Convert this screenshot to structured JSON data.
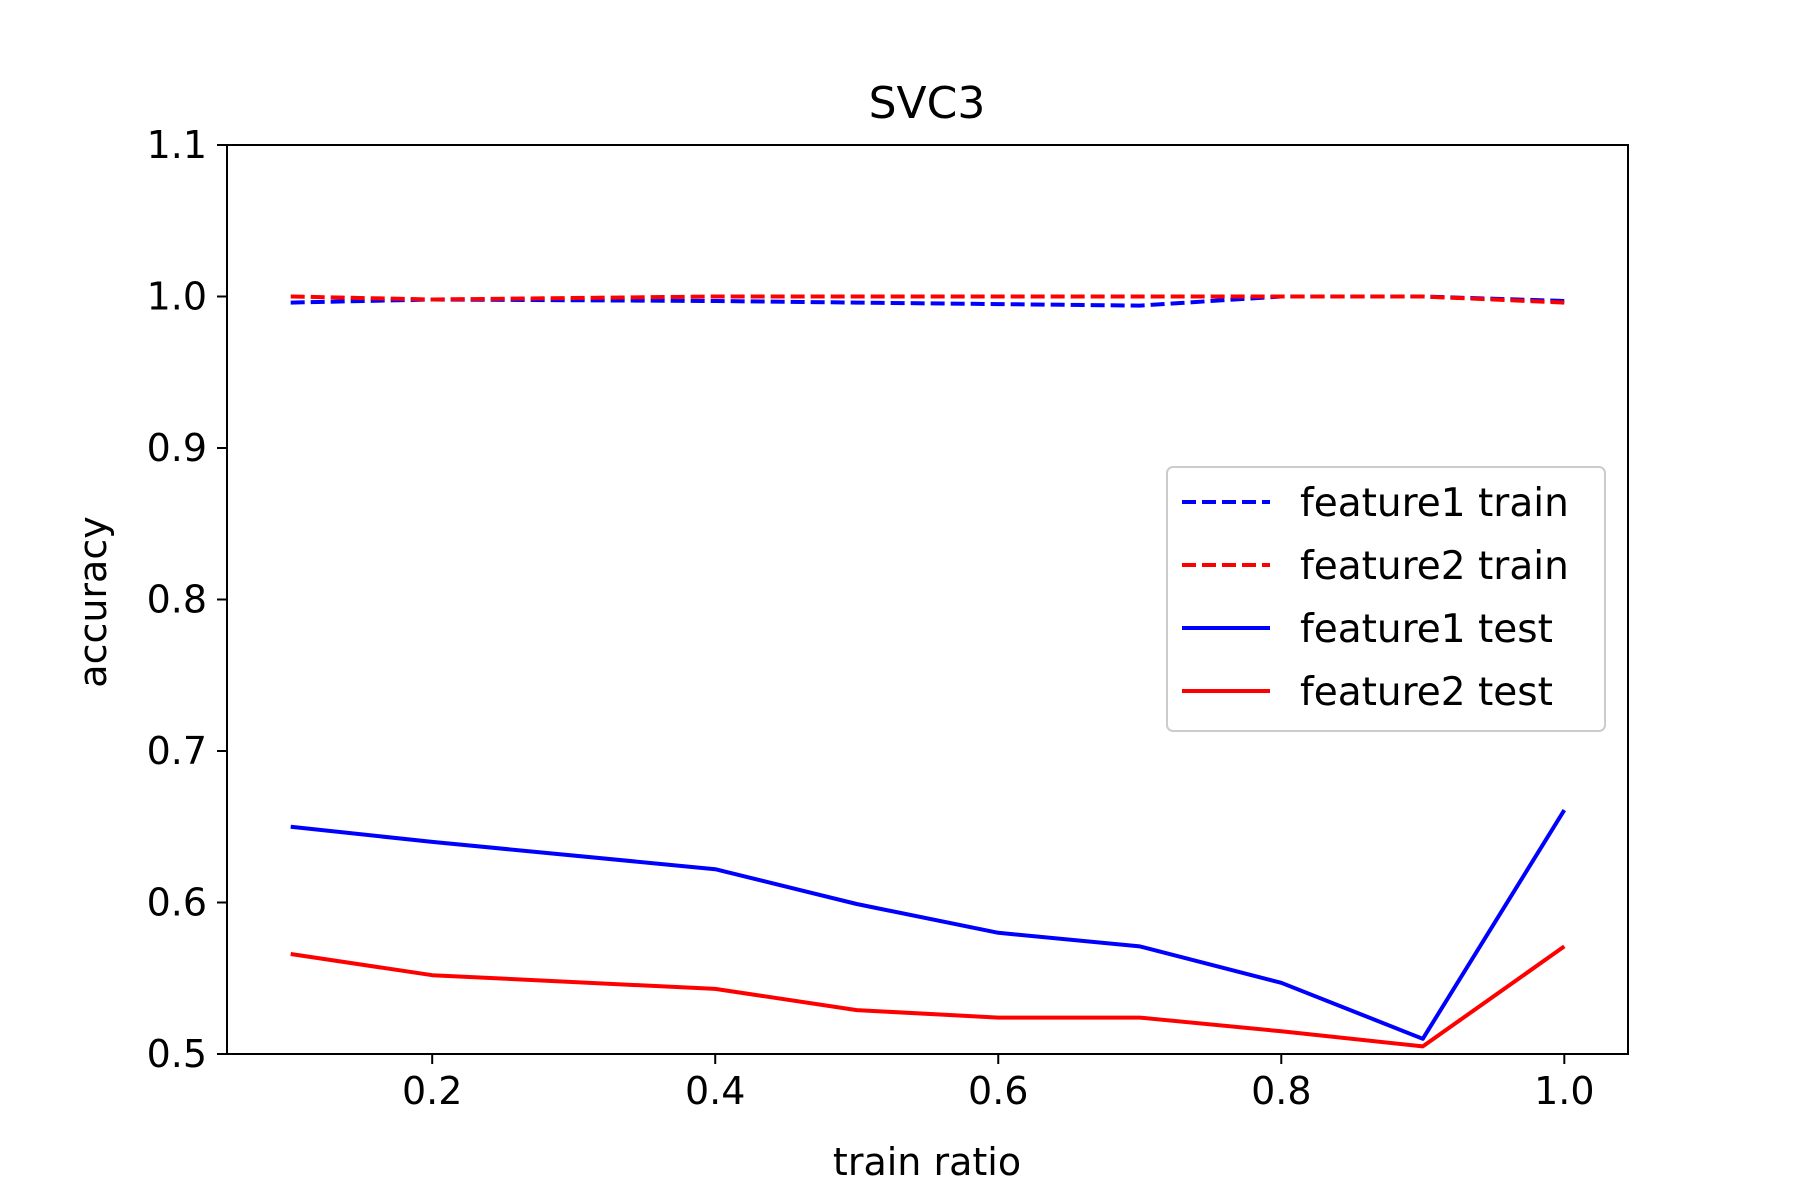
{
  "chart_data": {
    "type": "line",
    "title": "SVC3",
    "xlabel": "train ratio",
    "ylabel": "accuracy",
    "xlim": [
      0.055,
      1.045
    ],
    "ylim": [
      0.5,
      1.1
    ],
    "xticks": [
      0.2,
      0.4,
      0.6,
      0.8,
      1.0
    ],
    "xtick_labels": [
      "0.2",
      "0.4",
      "0.6",
      "0.8",
      "1.0"
    ],
    "yticks": [
      0.5,
      0.6,
      0.7,
      0.8,
      0.9,
      1.0,
      1.1
    ],
    "ytick_labels": [
      "0.5",
      "0.6",
      "0.7",
      "0.8",
      "0.9",
      "1.0",
      "1.1"
    ],
    "grid": false,
    "legend_position": "center-right",
    "x": [
      0.1,
      0.2,
      0.4,
      0.5,
      0.6,
      0.7,
      0.8,
      0.9,
      1.0
    ],
    "series": [
      {
        "name": "feature1 train",
        "color": "#0000ff",
        "style": "dashed",
        "values": [
          0.996,
          0.998,
          0.997,
          0.996,
          0.995,
          0.994,
          1.0,
          1.0,
          0.997
        ]
      },
      {
        "name": "feature2 train",
        "color": "#ff0000",
        "style": "dashed",
        "values": [
          1.0,
          0.998,
          1.0,
          1.0,
          1.0,
          1.0,
          1.0,
          1.0,
          0.996
        ]
      },
      {
        "name": "feature1 test",
        "color": "#0000ff",
        "style": "solid",
        "values": [
          0.65,
          0.64,
          0.622,
          0.599,
          0.58,
          0.571,
          0.547,
          0.51,
          0.661
        ]
      },
      {
        "name": "feature2 test",
        "color": "#ff0000",
        "style": "solid",
        "values": [
          0.566,
          0.552,
          0.543,
          0.529,
          0.524,
          0.524,
          0.515,
          0.505,
          0.571
        ]
      }
    ]
  }
}
